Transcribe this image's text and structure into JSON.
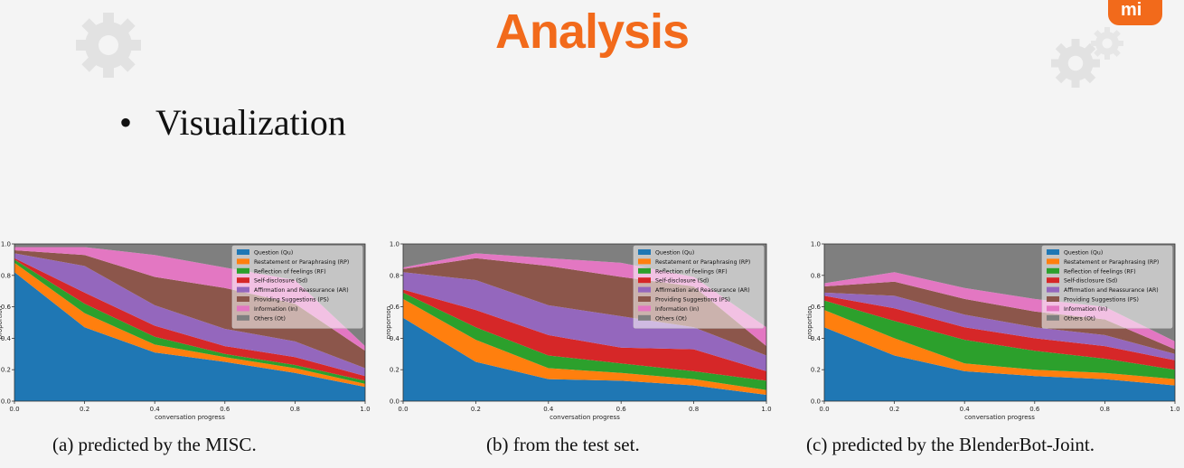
{
  "slide": {
    "title": "Analysis",
    "bullet": "Visualization",
    "bullet_marker": "•",
    "accent_color": "#f26a1b",
    "logo_icon": "mi-logo-icon",
    "decor_icons": [
      "gear-icon",
      "gear-icon",
      "gear-icon"
    ]
  },
  "legend": [
    {
      "label": "Question (Qu)",
      "color": "#1f77b4"
    },
    {
      "label": "Restatement or Paraphrasing (RP)",
      "color": "#ff7f0e"
    },
    {
      "label": "Reflection of feelings (RF)",
      "color": "#2ca02c"
    },
    {
      "label": "Self-disclosure (Sd)",
      "color": "#d62728"
    },
    {
      "label": "Affirmation and Reassurance (AR)",
      "color": "#9467bd"
    },
    {
      "label": "Providing Suggestions (PS)",
      "color": "#8c564b"
    },
    {
      "label": "Information (In)",
      "color": "#e377c2"
    },
    {
      "label": "Others (Ot)",
      "color": "#7f7f7f"
    }
  ],
  "chart_data": [
    {
      "type": "area",
      "caption": "(a)  predicted by the MISC.",
      "xlabel": "conversation progress",
      "ylabel": "proportion",
      "x": [
        0.0,
        0.2,
        0.4,
        0.6,
        0.8,
        1.0
      ],
      "xticks": [
        "0.0",
        "0.2",
        "0.4",
        "0.6",
        "0.8",
        "1.0"
      ],
      "yticks": [
        "0.0",
        "0.2",
        "0.4",
        "0.6",
        "0.8",
        "1.0"
      ],
      "xlim": [
        0,
        1
      ],
      "ylim": [
        0,
        1
      ],
      "legend_position": "top-right",
      "stacked": true,
      "series": [
        {
          "name": "Question (Qu)",
          "values": [
            0.82,
            0.47,
            0.31,
            0.25,
            0.18,
            0.09
          ]
        },
        {
          "name": "Restatement or Paraphrasing (RP)",
          "values": [
            0.06,
            0.09,
            0.05,
            0.03,
            0.03,
            0.02
          ]
        },
        {
          "name": "Reflection of feelings (RF)",
          "values": [
            0.02,
            0.06,
            0.05,
            0.02,
            0.02,
            0.02
          ]
        },
        {
          "name": "Self-disclosure (Sd)",
          "values": [
            0.01,
            0.07,
            0.07,
            0.05,
            0.05,
            0.03
          ]
        },
        {
          "name": "Affirmation and Reassurance (AR)",
          "values": [
            0.03,
            0.17,
            0.13,
            0.11,
            0.1,
            0.05
          ]
        },
        {
          "name": "Providing Suggestions (PS)",
          "values": [
            0.02,
            0.07,
            0.18,
            0.26,
            0.24,
            0.11
          ]
        },
        {
          "name": "Information (In)",
          "values": [
            0.02,
            0.05,
            0.14,
            0.13,
            0.15,
            0.03
          ]
        },
        {
          "name": "Others (Ot)",
          "values": [
            0.02,
            0.02,
            0.07,
            0.15,
            0.23,
            0.65
          ]
        }
      ]
    },
    {
      "type": "area",
      "caption": "(b)  from the test set.",
      "xlabel": "conversation progress",
      "ylabel": "proportion",
      "x": [
        0.0,
        0.2,
        0.4,
        0.6,
        0.8,
        1.0
      ],
      "xticks": [
        "0.0",
        "0.2",
        "0.4",
        "0.6",
        "0.8",
        "1.0"
      ],
      "yticks": [
        "0.0",
        "0.2",
        "0.4",
        "0.6",
        "0.8",
        "1.0"
      ],
      "xlim": [
        0,
        1
      ],
      "ylim": [
        0,
        1
      ],
      "legend_position": "top-right",
      "stacked": true,
      "series": [
        {
          "name": "Question (Qu)",
          "values": [
            0.53,
            0.25,
            0.14,
            0.13,
            0.1,
            0.04
          ]
        },
        {
          "name": "Restatement or Paraphrasing (RP)",
          "values": [
            0.12,
            0.14,
            0.07,
            0.05,
            0.04,
            0.03
          ]
        },
        {
          "name": "Reflection of feelings (RF)",
          "values": [
            0.04,
            0.08,
            0.08,
            0.06,
            0.05,
            0.06
          ]
        },
        {
          "name": "Self-disclosure (Sd)",
          "values": [
            0.02,
            0.11,
            0.13,
            0.1,
            0.14,
            0.06
          ]
        },
        {
          "name": "Affirmation and Reassurance (AR)",
          "values": [
            0.11,
            0.19,
            0.19,
            0.2,
            0.14,
            0.1
          ]
        },
        {
          "name": "Providing Suggestions (PS)",
          "values": [
            0.02,
            0.14,
            0.25,
            0.25,
            0.26,
            0.06
          ]
        },
        {
          "name": "Information (In)",
          "values": [
            0.01,
            0.03,
            0.05,
            0.09,
            0.06,
            0.12
          ]
        },
        {
          "name": "Others (Ot)",
          "values": [
            0.15,
            0.06,
            0.09,
            0.12,
            0.21,
            0.53
          ]
        }
      ]
    },
    {
      "type": "area",
      "caption": "(c)  predicted by the BlenderBot-Joint.",
      "xlabel": "conversation progress",
      "ylabel": "proportion",
      "x": [
        0.0,
        0.2,
        0.4,
        0.6,
        0.8,
        1.0
      ],
      "xticks": [
        "0.0",
        "0.2",
        "0.4",
        "0.6",
        "0.8",
        "1.0"
      ],
      "yticks": [
        "0.0",
        "0.2",
        "0.4",
        "0.6",
        "0.8",
        "1.0"
      ],
      "xlim": [
        0,
        1
      ],
      "ylim": [
        0,
        1
      ],
      "legend_position": "top-right",
      "stacked": true,
      "series": [
        {
          "name": "Question (Qu)",
          "values": [
            0.47,
            0.29,
            0.19,
            0.16,
            0.14,
            0.1
          ]
        },
        {
          "name": "Restatement or Paraphrasing (RP)",
          "values": [
            0.11,
            0.11,
            0.05,
            0.04,
            0.04,
            0.04
          ]
        },
        {
          "name": "Reflection of feelings (RF)",
          "values": [
            0.06,
            0.11,
            0.15,
            0.12,
            0.09,
            0.06
          ]
        },
        {
          "name": "Self-disclosure (Sd)",
          "values": [
            0.03,
            0.08,
            0.08,
            0.08,
            0.08,
            0.06
          ]
        },
        {
          "name": "Affirmation and Reassurance (AR)",
          "values": [
            0.02,
            0.08,
            0.08,
            0.07,
            0.07,
            0.04
          ]
        },
        {
          "name": "Providing Suggestions (PS)",
          "values": [
            0.04,
            0.09,
            0.1,
            0.1,
            0.1,
            0.03
          ]
        },
        {
          "name": "Information (In)",
          "values": [
            0.02,
            0.06,
            0.07,
            0.08,
            0.08,
            0.05
          ]
        },
        {
          "name": "Others (Ot)",
          "values": [
            0.25,
            0.18,
            0.28,
            0.35,
            0.4,
            0.62
          ]
        }
      ]
    }
  ]
}
